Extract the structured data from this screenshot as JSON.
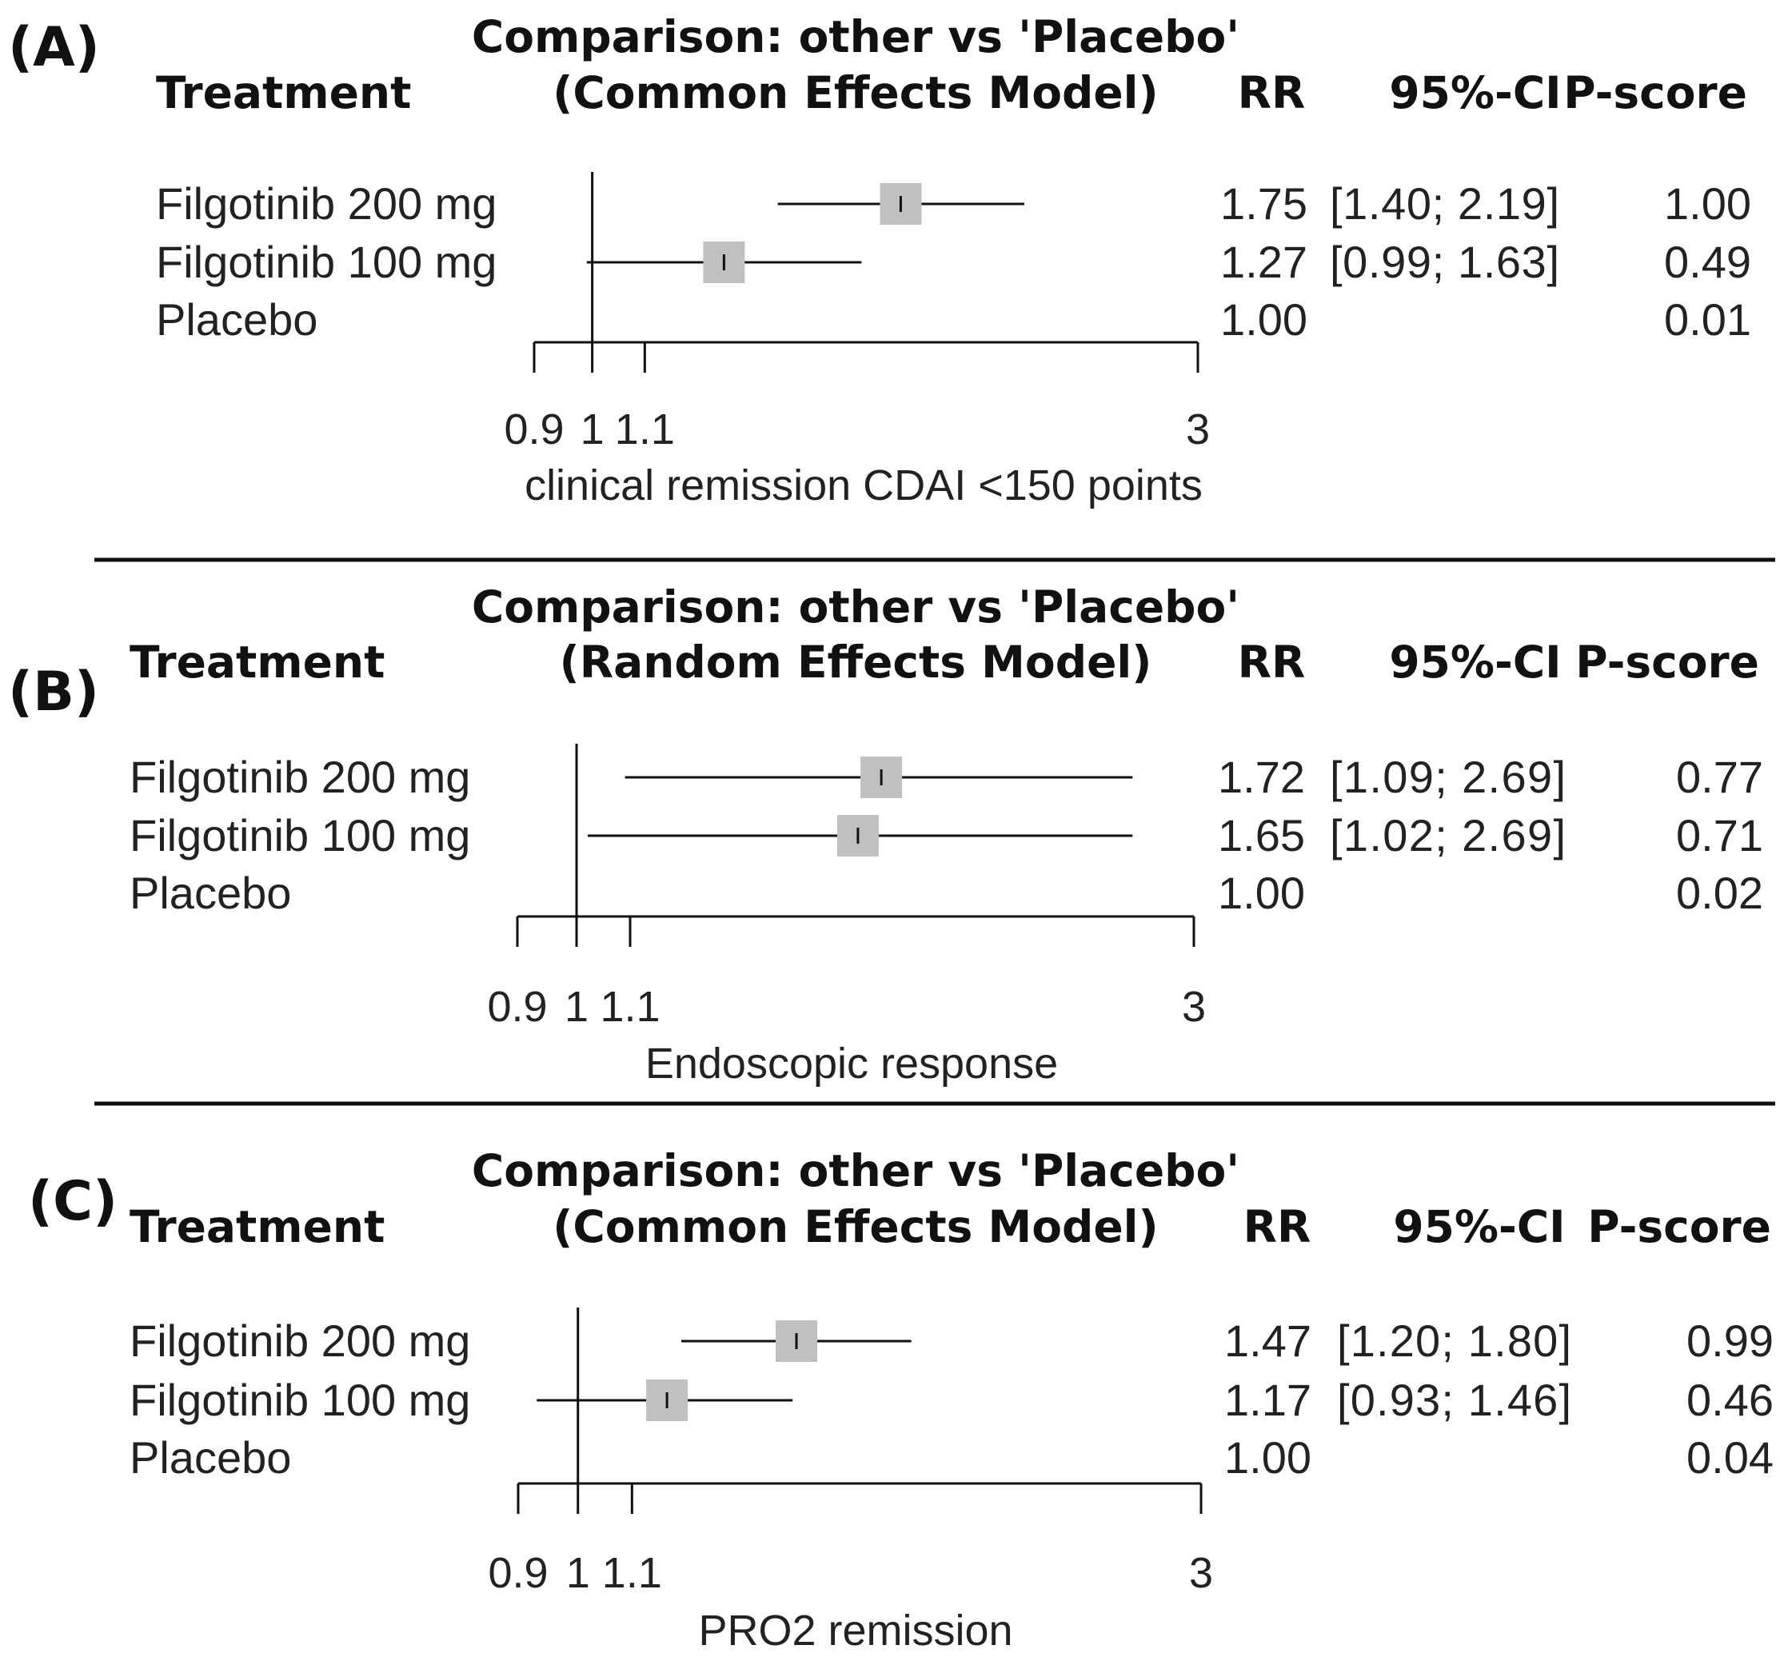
{
  "chart_data": [
    {
      "type": "forest",
      "panel_label": "(A)",
      "title": "Comparison: other vs 'Placebo'",
      "subtitle": "(Common Effects Model)",
      "columns": {
        "treatment": "Treatment",
        "rr": "RR",
        "ci": "95%-CI",
        "pscore": "P-score"
      },
      "rows": [
        {
          "treatment": "Filgotinib 200 mg",
          "rr": 1.75,
          "lower": 1.4,
          "upper": 2.19,
          "rr_text": "1.75",
          "ci_text": "[1.40; 2.19]",
          "pscore_text": "1.00"
        },
        {
          "treatment": "Filgotinib 100 mg",
          "rr": 1.27,
          "lower": 0.99,
          "upper": 1.63,
          "rr_text": "1.27",
          "ci_text": "[0.99; 1.63]",
          "pscore_text": "0.49"
        },
        {
          "treatment": "Placebo",
          "rr": 1.0,
          "lower": null,
          "upper": null,
          "rr_text": "1.00",
          "ci_text": "",
          "pscore_text": "0.01"
        }
      ],
      "xaxis": {
        "scale": "log",
        "ticks": [
          0.9,
          1,
          1.1,
          3
        ],
        "tick_labels": [
          "0.9",
          "1",
          "1.1",
          "3"
        ],
        "range": [
          0.9,
          3
        ]
      },
      "xlabel": "clinical remission CDAI <150 points"
    },
    {
      "type": "forest",
      "panel_label": "(B)",
      "title": "Comparison: other vs 'Placebo'",
      "subtitle": "(Random Effects Model)",
      "columns": {
        "treatment": "Treatment",
        "rr": "RR",
        "ci": "95%-CI",
        "pscore": "P-score"
      },
      "rows": [
        {
          "treatment": "Filgotinib 200 mg",
          "rr": 1.72,
          "lower": 1.09,
          "upper": 2.69,
          "rr_text": "1.72",
          "ci_text": "[1.09; 2.69]",
          "pscore_text": "0.77"
        },
        {
          "treatment": "Filgotinib 100 mg",
          "rr": 1.65,
          "lower": 1.02,
          "upper": 2.69,
          "rr_text": "1.65",
          "ci_text": "[1.02; 2.69]",
          "pscore_text": "0.71"
        },
        {
          "treatment": "Placebo",
          "rr": 1.0,
          "lower": null,
          "upper": null,
          "rr_text": "1.00",
          "ci_text": "",
          "pscore_text": "0.02"
        }
      ],
      "xaxis": {
        "scale": "log",
        "ticks": [
          0.9,
          1,
          1.1,
          3
        ],
        "tick_labels": [
          "0.9",
          "1",
          "1.1",
          "3"
        ],
        "range": [
          0.9,
          3
        ]
      },
      "xlabel": "Endoscopic response"
    },
    {
      "type": "forest",
      "panel_label": "(C)",
      "title": "Comparison: other vs 'Placebo'",
      "subtitle": "(Common Effects Model)",
      "columns": {
        "treatment": "Treatment",
        "rr": "RR",
        "ci": "95%-CI",
        "pscore": "P-score"
      },
      "rows": [
        {
          "treatment": "Filgotinib 200 mg",
          "rr": 1.47,
          "lower": 1.2,
          "upper": 1.8,
          "rr_text": "1.47",
          "ci_text": "[1.20; 1.80]",
          "pscore_text": "0.99"
        },
        {
          "treatment": "Filgotinib 100 mg",
          "rr": 1.17,
          "lower": 0.93,
          "upper": 1.46,
          "rr_text": "1.17",
          "ci_text": "[0.93; 1.46]",
          "pscore_text": "0.46"
        },
        {
          "treatment": "Placebo",
          "rr": 1.0,
          "lower": null,
          "upper": null,
          "rr_text": "1.00",
          "ci_text": "",
          "pscore_text": "0.04"
        }
      ],
      "xaxis": {
        "scale": "log",
        "ticks": [
          0.9,
          1,
          1.1,
          3
        ],
        "tick_labels": [
          "0.9",
          "1",
          "1.1",
          "3"
        ],
        "range": [
          0.9,
          3
        ]
      },
      "xlabel": "PRO2 remission"
    }
  ],
  "colors": {
    "square": "#c0c0c0",
    "line": "#111111",
    "text": "#222222"
  }
}
